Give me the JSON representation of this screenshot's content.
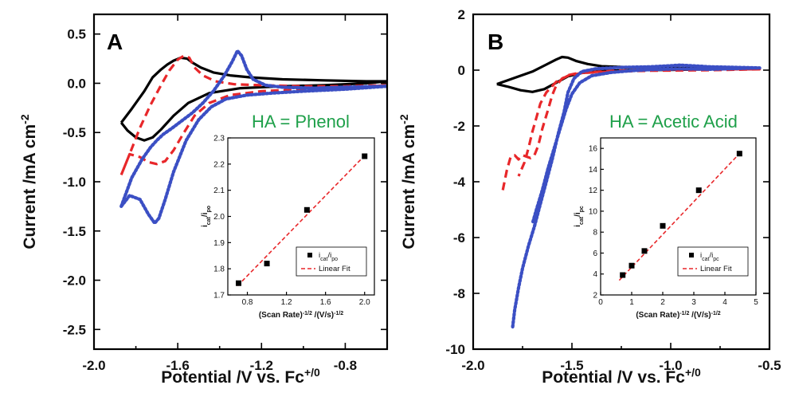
{
  "colors": {
    "solid": "#000000",
    "dashed": "#e8272a",
    "dotted": "#3b4fc4",
    "annotation": "#1fa04a",
    "fit": "#e8272a"
  },
  "chart_data": [
    {
      "panel_label": "A",
      "type": "line",
      "annotation": "HA = Phenol",
      "xlabel_main": "Potential /V vs. Fc",
      "xlabel_sup": "+/0",
      "ylabel_main": "Current /mA cm",
      "ylabel_sup": "-2",
      "xlim": [
        -2.0,
        -0.6
      ],
      "ylim": [
        -2.7,
        0.7
      ],
      "xticks": [
        -2.0,
        -1.6,
        -1.2,
        -0.8
      ],
      "xtick_labels": [
        "-2.0",
        "-1.6",
        "-1.2",
        "-0.8"
      ],
      "yticks": [
        0.5,
        0.0,
        -0.5,
        -1.0,
        -1.5,
        -2.0,
        -2.5
      ],
      "ytick_labels": [
        "0.5",
        "0.0",
        "-0.5",
        "-1.0",
        "-1.5",
        "-2.0",
        "-2.5"
      ],
      "series": [
        {
          "style": "solid",
          "color": "#000000",
          "x": [
            -1.87,
            -1.82,
            -1.76,
            -1.72,
            -1.68,
            -1.65,
            -1.62,
            -1.585,
            -1.555,
            -1.53,
            -1.49,
            -1.43,
            -1.35,
            -1.25,
            -1.1,
            -0.9,
            -0.7,
            -0.6,
            -0.7,
            -0.9,
            -1.1,
            -1.3,
            -1.45,
            -1.55,
            -1.62,
            -1.68,
            -1.72,
            -1.76,
            -1.8,
            -1.84,
            -1.87
          ],
          "y": [
            -0.4,
            -0.26,
            -0.08,
            0.06,
            0.14,
            0.19,
            0.23,
            0.26,
            0.25,
            0.21,
            0.16,
            0.11,
            0.08,
            0.06,
            0.04,
            0.03,
            0.02,
            0.02,
            0.0,
            -0.02,
            -0.03,
            -0.05,
            -0.1,
            -0.2,
            -0.33,
            -0.47,
            -0.55,
            -0.58,
            -0.55,
            -0.48,
            -0.4
          ]
        },
        {
          "style": "dashed",
          "color": "#e8272a",
          "x": [
            -1.87,
            -1.83,
            -1.78,
            -1.73,
            -1.68,
            -1.64,
            -1.6,
            -1.57,
            -1.545,
            -1.52,
            -1.48,
            -1.42,
            -1.33,
            -1.2,
            -1.0,
            -0.8,
            -0.6,
            -0.8,
            -1.0,
            -1.2,
            -1.35,
            -1.45,
            -1.52,
            -1.57,
            -1.62,
            -1.66,
            -1.7,
            -1.74,
            -1.78,
            -1.83,
            -1.87
          ],
          "y": [
            -0.93,
            -0.72,
            -0.45,
            -0.22,
            -0.02,
            0.13,
            0.24,
            0.28,
            0.26,
            0.16,
            0.08,
            0.02,
            -0.01,
            -0.02,
            -0.03,
            -0.03,
            -0.02,
            -0.05,
            -0.06,
            -0.08,
            -0.12,
            -0.2,
            -0.33,
            -0.5,
            -0.68,
            -0.79,
            -0.82,
            -0.8,
            -0.75,
            -0.72,
            -0.93
          ]
        },
        {
          "style": "dotted",
          "color": "#3b4fc4",
          "x": [
            -1.87,
            -1.82,
            -1.77,
            -1.73,
            -1.7,
            -1.67,
            -1.63,
            -1.58,
            -1.53,
            -1.48,
            -1.43,
            -1.38,
            -1.34,
            -1.315,
            -1.295,
            -1.27,
            -1.24,
            -1.18,
            -1.1,
            -0.95,
            -0.8,
            -0.6,
            -0.8,
            -1.0,
            -1.15,
            -1.27,
            -1.37,
            -1.44,
            -1.5,
            -1.56,
            -1.62,
            -1.66,
            -1.69,
            -1.71,
            -1.74,
            -1.78,
            -1.83,
            -1.87
          ],
          "y": [
            -1.25,
            -0.96,
            -0.77,
            -0.65,
            -0.58,
            -0.52,
            -0.46,
            -0.38,
            -0.3,
            -0.2,
            -0.08,
            0.07,
            0.22,
            0.33,
            0.28,
            0.14,
            0.04,
            -0.02,
            -0.04,
            -0.05,
            -0.04,
            -0.03,
            -0.06,
            -0.08,
            -0.1,
            -0.12,
            -0.16,
            -0.24,
            -0.37,
            -0.58,
            -0.9,
            -1.18,
            -1.37,
            -1.42,
            -1.33,
            -1.18,
            -1.14,
            -1.25
          ]
        }
      ],
      "inset": {
        "xlabel": "(Scan Rate)",
        "xlabel_sup": "-1/2",
        "xlabel_tail": " /(V/s)",
        "xlabel_tail_sup": "-1/2",
        "ylabel": "i",
        "ylabel_sub1": "cat",
        "ylabel_mid": "/i",
        "ylabel_sub2": "po",
        "xlim": [
          0.6,
          2.1
        ],
        "ylim": [
          1.7,
          2.3
        ],
        "xticks": [
          0.8,
          1.2,
          1.6,
          2.0
        ],
        "xtick_labels": [
          "0.8",
          "1.2",
          "1.6",
          "2.0"
        ],
        "yticks": [
          1.7,
          1.8,
          1.9,
          2.0,
          2.1,
          2.2,
          2.3
        ],
        "ytick_labels": [
          "1.7",
          "1.8",
          "1.9",
          "2.0",
          "2.1",
          "2.2",
          "2.3"
        ],
        "points": {
          "x": [
            0.71,
            1.0,
            1.41,
            2.0
          ],
          "y": [
            1.745,
            1.82,
            2.025,
            2.23
          ]
        },
        "fit": {
          "x": [
            0.7,
            2.02
          ],
          "y": [
            1.735,
            2.24
          ]
        },
        "legend_points": "i",
        "legend_points_sub1": "cat",
        "legend_points_mid": "/i",
        "legend_points_sub2": "po",
        "legend_fit": "Linear Fit"
      }
    },
    {
      "panel_label": "B",
      "type": "line",
      "annotation": "HA = Acetic Acid",
      "xlabel_main": "Potential /V vs. Fc",
      "xlabel_sup": "+/0",
      "ylabel_main": "Current /mA cm",
      "ylabel_sup": "-2",
      "xlim": [
        -2.0,
        -0.5
      ],
      "ylim": [
        -10,
        2
      ],
      "xticks": [
        -2.0,
        -1.5,
        -1.0,
        -0.5
      ],
      "xtick_labels": [
        "-2.0",
        "-1.5",
        "-1.0",
        "-0.5"
      ],
      "yticks": [
        2,
        0,
        -2,
        -4,
        -6,
        -8,
        -10
      ],
      "ytick_labels": [
        "2",
        "0",
        "-2",
        "-4",
        "-6",
        "-8",
        "-10"
      ],
      "series": [
        {
          "style": "solid",
          "color": "#000000",
          "x": [
            -1.88,
            -1.8,
            -1.7,
            -1.63,
            -1.58,
            -1.55,
            -1.52,
            -1.48,
            -1.42,
            -1.35,
            -1.2,
            -1.0,
            -0.8,
            -0.55,
            -0.8,
            -1.0,
            -1.2,
            -1.35,
            -1.45,
            -1.52,
            -1.58,
            -1.64,
            -1.7,
            -1.76,
            -1.82,
            -1.88
          ],
          "y": [
            -0.5,
            -0.3,
            -0.05,
            0.2,
            0.38,
            0.47,
            0.45,
            0.33,
            0.22,
            0.14,
            0.1,
            0.08,
            0.06,
            0.05,
            0.03,
            0.01,
            0.0,
            -0.03,
            -0.1,
            -0.22,
            -0.45,
            -0.68,
            -0.78,
            -0.72,
            -0.6,
            -0.5
          ]
        },
        {
          "style": "dashed",
          "color": "#e8272a",
          "x": [
            -1.85,
            -1.83,
            -1.81,
            -1.79,
            -1.77,
            -1.75,
            -1.73,
            -1.71,
            -1.69,
            -1.67,
            -1.65,
            -1.62,
            -1.6,
            -1.58,
            -1.55,
            -1.52,
            -1.48,
            -1.42,
            -1.3,
            -1.1,
            -0.8,
            -0.55,
            -0.8,
            -1.1,
            -1.3,
            -1.45,
            -1.52,
            -1.58,
            -1.63,
            -1.66,
            -1.68,
            -1.7,
            -1.72,
            -1.74,
            -1.77
          ],
          "y": [
            -4.3,
            -3.6,
            -3.1,
            -3.05,
            -3.2,
            -3.05,
            -3.1,
            -3.15,
            -3.05,
            -2.7,
            -2.1,
            -1.4,
            -0.9,
            -0.55,
            -0.3,
            -0.18,
            -0.12,
            -0.08,
            -0.03,
            0.02,
            0.03,
            0.03,
            0.0,
            -0.02,
            -0.05,
            -0.1,
            -0.2,
            -0.42,
            -0.8,
            -1.2,
            -1.7,
            -2.2,
            -2.8,
            -3.3,
            -3.8
          ]
        },
        {
          "style": "dotted",
          "color": "#3b4fc4",
          "x": [
            -1.8,
            -1.79,
            -1.77,
            -1.75,
            -1.72,
            -1.69,
            -1.66,
            -1.63,
            -1.6,
            -1.57,
            -1.54,
            -1.52,
            -1.49,
            -1.45,
            -1.38,
            -1.25,
            -1.1,
            -0.95,
            -0.8,
            -0.55,
            -0.8,
            -0.95,
            -1.1,
            -1.2,
            -1.3,
            -1.4,
            -1.46,
            -1.5,
            -1.53,
            -1.56,
            -1.59,
            -1.62,
            -1.65,
            -1.68,
            -1.7
          ],
          "y": [
            -9.2,
            -8.6,
            -7.8,
            -7.1,
            -6.3,
            -5.6,
            -4.8,
            -4.0,
            -3.2,
            -2.3,
            -1.5,
            -0.8,
            -0.3,
            -0.05,
            0.05,
            0.1,
            0.12,
            0.18,
            0.12,
            0.08,
            0.03,
            0.05,
            0.02,
            -0.02,
            -0.08,
            -0.2,
            -0.45,
            -0.85,
            -1.4,
            -2.1,
            -2.8,
            -3.5,
            -4.3,
            -5.0,
            -5.5
          ]
        }
      ],
      "inset": {
        "xlabel": "(Scan Rate)",
        "xlabel_sup": "-1/2",
        "xlabel_tail": " /(V/s)",
        "xlabel_tail_sup": "-1/2",
        "ylabel": "i",
        "ylabel_sub1": "cat",
        "ylabel_mid": "/i",
        "ylabel_sub2": "pc",
        "xlim": [
          0,
          5
        ],
        "ylim": [
          2,
          17
        ],
        "xticks": [
          0,
          1,
          2,
          3,
          4,
          5
        ],
        "xtick_labels": [
          "0",
          "1",
          "2",
          "3",
          "4",
          "5"
        ],
        "yticks": [
          2,
          4,
          6,
          8,
          10,
          12,
          14,
          16
        ],
        "ytick_labels": [
          "2",
          "4",
          "6",
          "8",
          "10",
          "12",
          "14",
          "16"
        ],
        "points": {
          "x": [
            0.71,
            1.0,
            1.41,
            2.0,
            3.16,
            4.47
          ],
          "y": [
            3.9,
            4.8,
            6.2,
            8.6,
            12.0,
            15.5
          ]
        },
        "fit": {
          "x": [
            0.6,
            4.5
          ],
          "y": [
            3.4,
            15.6
          ]
        },
        "legend_points": "i",
        "legend_points_sub1": "cat",
        "legend_points_mid": "/i",
        "legend_points_sub2": "pc",
        "legend_fit": "Linear Fit"
      }
    }
  ]
}
